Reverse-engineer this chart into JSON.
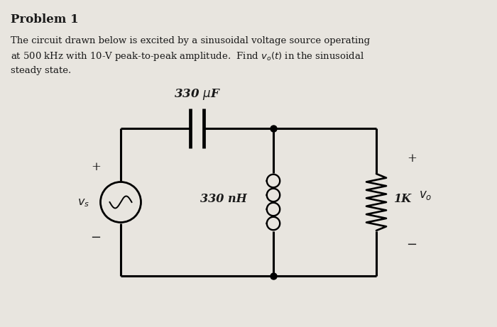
{
  "background_color": "#e8e5df",
  "title": "Problem 1",
  "problem_text_line1": "The circuit drawn below is excited by a sinusoidal voltage source operating",
  "problem_text_line2": "at 500 kHz with 10-V peak-to-peak amplitude.  Find $v_o(t)$ in the sinusoidal",
  "problem_text_line3": "steady state.",
  "cap_label": "330 $\\mu$F",
  "ind_label": "330 nH",
  "res_label": "1K",
  "vs_label": "$v_s$",
  "vo_label": "$v_o$",
  "font_color": "#1a1a1a"
}
